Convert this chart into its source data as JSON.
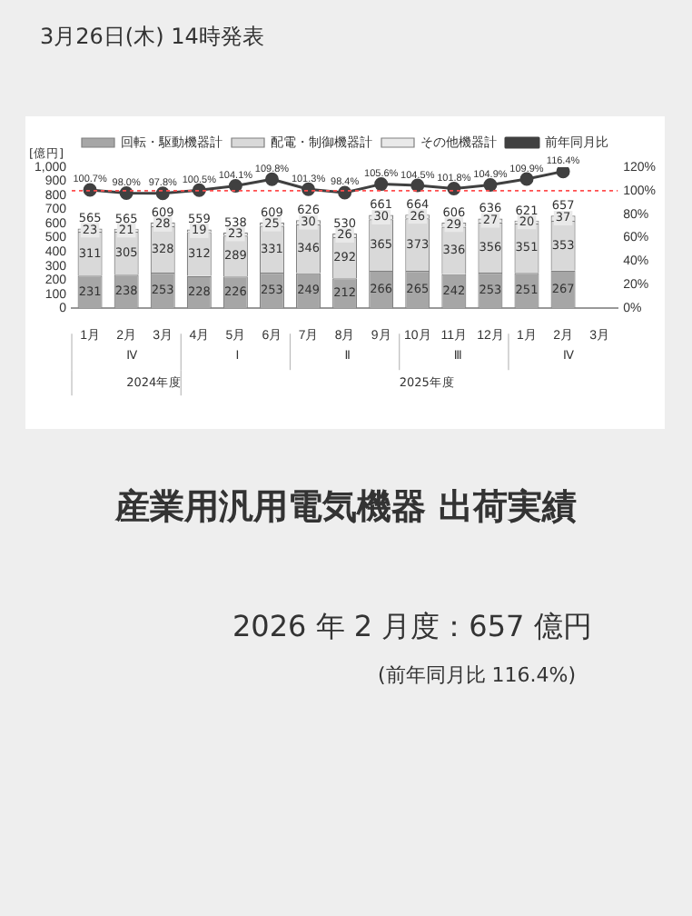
{
  "chart_data": {
    "type": "bar",
    "stacked": true,
    "title": "産業用汎用電気機器 出荷実績",
    "subtitle": "2026 年 2 月度：657 億円",
    "ylabel": "[億円]",
    "categories": [
      "1月",
      "2月",
      "3月",
      "4月",
      "5月",
      "6月",
      "7月",
      "8月",
      "9月",
      "10月",
      "11月",
      "12月",
      "1月",
      "2月",
      "3月"
    ],
    "series": [
      {
        "name": "回転・駆動機器計",
        "color": "#a6a6a6",
        "values": [
          231,
          238,
          253,
          228,
          226,
          253,
          249,
          212,
          266,
          265,
          242,
          253,
          251,
          267,
          null
        ]
      },
      {
        "name": "配電・制御機器計",
        "color": "#d9d9d9",
        "values": [
          311,
          305,
          328,
          312,
          289,
          331,
          346,
          292,
          365,
          373,
          336,
          356,
          351,
          353,
          null
        ]
      },
      {
        "name": "その他機器計",
        "color": "#e9e9e9",
        "values": [
          23,
          21,
          28,
          19,
          23,
          25,
          30,
          26,
          30,
          26,
          29,
          27,
          20,
          37,
          null
        ]
      },
      {
        "name": "前年同月比",
        "type": "line",
        "axis": "y2",
        "color": "#404040",
        "marker": "circle",
        "values": [
          100.7,
          98.0,
          97.8,
          100.5,
          104.1,
          109.8,
          101.3,
          98.4,
          105.6,
          104.5,
          101.8,
          104.9,
          109.9,
          116.4,
          null
        ],
        "value_labels": [
          "100.7%",
          "98.0%",
          "97.8%",
          "100.5%",
          "104.1%",
          "109.8%",
          "101.3%",
          "98.4%",
          "105.6%",
          "104.5%",
          "101.8%",
          "104.9%",
          "109.9%",
          "116.4%",
          null
        ]
      }
    ],
    "totals": [
      "565",
      "565",
      "609",
      "559",
      "538",
      "609",
      "626",
      "530",
      "661",
      "664",
      "606",
      "636",
      "621",
      "657",
      null
    ],
    "data_labels": true,
    "ylim": [
      0,
      1000
    ],
    "yticks": [
      0,
      100,
      200,
      300,
      400,
      500,
      600,
      700,
      800,
      900,
      {
        "value": 1000,
        "label": "1,000"
      }
    ],
    "y2lim": [
      0,
      120
    ],
    "y2ticks": [
      {
        "value": 0,
        "label": "0%"
      },
      {
        "value": 20,
        "label": "20%"
      },
      {
        "value": 40,
        "label": "40%"
      },
      {
        "value": 60,
        "label": "60%"
      },
      {
        "value": 80,
        "label": "80%"
      },
      {
        "value": 100,
        "label": "100%"
      },
      {
        "value": 120,
        "label": "120%"
      }
    ],
    "ref_lines": [
      {
        "axis": "y2",
        "value": 100,
        "color": "#ff4d4d",
        "line_style": "dotted"
      }
    ],
    "grid": false,
    "legend": "top",
    "annotations": [
      "3月26日(木) 14時発表",
      "(前年同月比 116.4%)",
      "Ⅳ",
      "Ⅰ",
      "Ⅱ",
      "Ⅲ",
      "Ⅳ",
      "2024年度",
      "2025年度"
    ]
  }
}
